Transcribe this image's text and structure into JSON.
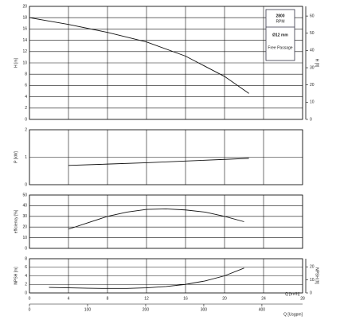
{
  "chart_data": [
    {
      "type": "line",
      "ylabel": "H [m]",
      "y2label": "H [ft]",
      "xlim": [
        0,
        28
      ],
      "xticks": [
        0,
        4,
        8,
        12,
        16,
        20,
        24,
        28
      ],
      "ylim": [
        0,
        20
      ],
      "yticks": [
        0,
        2,
        4,
        6,
        8,
        10,
        12,
        14,
        16,
        18,
        20
      ],
      "y2lim": [
        0,
        65.6
      ],
      "y2ticks": [
        0,
        10,
        20,
        30,
        40,
        50,
        60
      ],
      "grid": true,
      "annotations": [
        "2800",
        "RPM",
        "Ø12 mm",
        "Free Passage"
      ],
      "series": [
        {
          "color": "#111111",
          "x": [
            0,
            4,
            8,
            12,
            16,
            20,
            22.5
          ],
          "values": [
            18,
            16.8,
            15.4,
            13.7,
            11.2,
            7.6,
            4.6
          ]
        }
      ]
    },
    {
      "type": "line",
      "ylabel": "P [kW]",
      "xlim": [
        0,
        28
      ],
      "xticks": [
        0,
        4,
        8,
        12,
        16,
        20,
        24,
        28
      ],
      "ylim": [
        0,
        2
      ],
      "yticks": [
        0,
        1,
        2
      ],
      "grid": true,
      "series": [
        {
          "color": "#111111",
          "x": [
            4,
            8,
            12,
            16,
            20,
            22.5
          ],
          "values": [
            0.7,
            0.75,
            0.8,
            0.86,
            0.92,
            0.96
          ]
        }
      ]
    },
    {
      "type": "line",
      "ylabel": "efficiency [%]",
      "xlim": [
        0,
        28
      ],
      "xticks": [
        0,
        4,
        8,
        12,
        16,
        20,
        24,
        28
      ],
      "ylim": [
        0,
        50
      ],
      "yticks": [
        0,
        10,
        20,
        30,
        40,
        50
      ],
      "grid": true,
      "series": [
        {
          "color": "#111111",
          "x": [
            4,
            6,
            8,
            10,
            12,
            14,
            16,
            18,
            20,
            22
          ],
          "values": [
            18,
            24,
            30,
            34,
            36.5,
            37,
            36,
            34,
            30,
            25
          ]
        }
      ]
    },
    {
      "type": "line",
      "ylabel": "NPSH [m]",
      "y2label": "NPSH [ft]",
      "xlabel": "Q [m³/h]",
      "x2label": "Q [Usgpm]",
      "xlim": [
        0,
        28
      ],
      "xticks": [
        0,
        4,
        8,
        12,
        16,
        20,
        24,
        28
      ],
      "x2lim": [
        0,
        470
      ],
      "x2ticks": [
        0,
        100,
        200,
        300,
        400
      ],
      "ylim": [
        0,
        8
      ],
      "yticks": [
        0,
        2,
        4,
        6,
        8
      ],
      "y2lim": [
        0,
        26.2
      ],
      "y2ticks": [
        0,
        10,
        20
      ],
      "grid": true,
      "series": [
        {
          "color": "#111111",
          "x": [
            2,
            4,
            6,
            8,
            10,
            12,
            14,
            16,
            18,
            20,
            22
          ],
          "values": [
            1.3,
            1.2,
            1.1,
            1.05,
            1.05,
            1.2,
            1.5,
            2.0,
            2.8,
            4.0,
            5.8
          ]
        }
      ]
    }
  ]
}
